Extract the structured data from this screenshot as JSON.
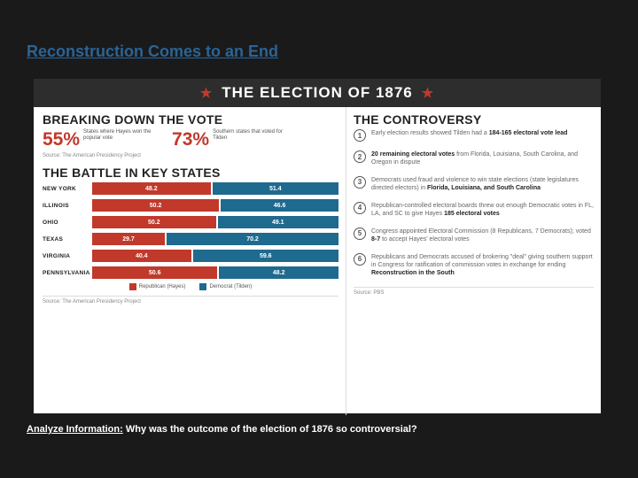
{
  "slide": {
    "title": "Reconstruction Comes to an End",
    "question_label": "Analyze Information:",
    "question_text": " Why was the outcome of the election of 1876 so controversial?"
  },
  "header": {
    "title": "THE ELECTION OF 1876",
    "star_color": "#c0392b",
    "bg": "#2d2d2d"
  },
  "breakdown": {
    "heading": "BREAKING DOWN THE VOTE",
    "stats": [
      {
        "pct": "55%",
        "desc": "States where Hayes won the popular vote"
      },
      {
        "pct": "73%",
        "desc": "Southern states that voted for Tilden"
      }
    ],
    "source": "Source: The American Presidency Project"
  },
  "battle": {
    "heading": "THE BATTLE IN KEY STATES",
    "rows": [
      {
        "state": "NEW YORK",
        "r": 48.2,
        "d": 51.4
      },
      {
        "state": "ILLINOIS",
        "r": 50.2,
        "d": 46.6
      },
      {
        "state": "OHIO",
        "r": 50.2,
        "d": 49.1
      },
      {
        "state": "TEXAS",
        "r": 29.7,
        "d": 70.2
      },
      {
        "state": "VIRGINIA",
        "r": 40.4,
        "d": 59.6
      },
      {
        "state": "PENNSYLVANIA",
        "r": 50.6,
        "d": 48.2
      }
    ],
    "legend_r": "Republican (Hayes)",
    "legend_d": "Democrat (Tilden)",
    "color_r": "#c0392b",
    "color_d": "#1f6a8f",
    "max_scale": 75,
    "source": "Source: The American Presidency Project"
  },
  "controversy": {
    "heading": "THE CONTROVERSY",
    "items": [
      {
        "pre": "Early election results showed Tilden had a ",
        "bold": "184-165 electoral vote lead",
        "post": ""
      },
      {
        "pre": "",
        "bold": "20 remaining electoral votes",
        "post": " from Florida, Louisiana, South Carolina, and Oregon in dispute"
      },
      {
        "pre": "Democrats used fraud and violence to win state elections (state legislatures directed electors) in ",
        "bold": "Florida, Louisiana, and South Carolina",
        "post": ""
      },
      {
        "pre": "Republican-controlled electoral boards threw out enough Democratic votes in FL, LA, and SC to give Hayes ",
        "bold": "185 electoral votes",
        "post": ""
      },
      {
        "pre": "Congress appointed Electoral Commission (8 Republicans, 7 Democrats); voted ",
        "bold": "8-7",
        "post": " to accept Hayes' electoral votes"
      },
      {
        "pre": "Republicans and Democrats accused of brokering \"deal\" giving southern support in Congress for ratification of commission votes in exchange for ending ",
        "bold": "Reconstruction in the South",
        "post": ""
      }
    ],
    "source": "Source: PBS"
  }
}
